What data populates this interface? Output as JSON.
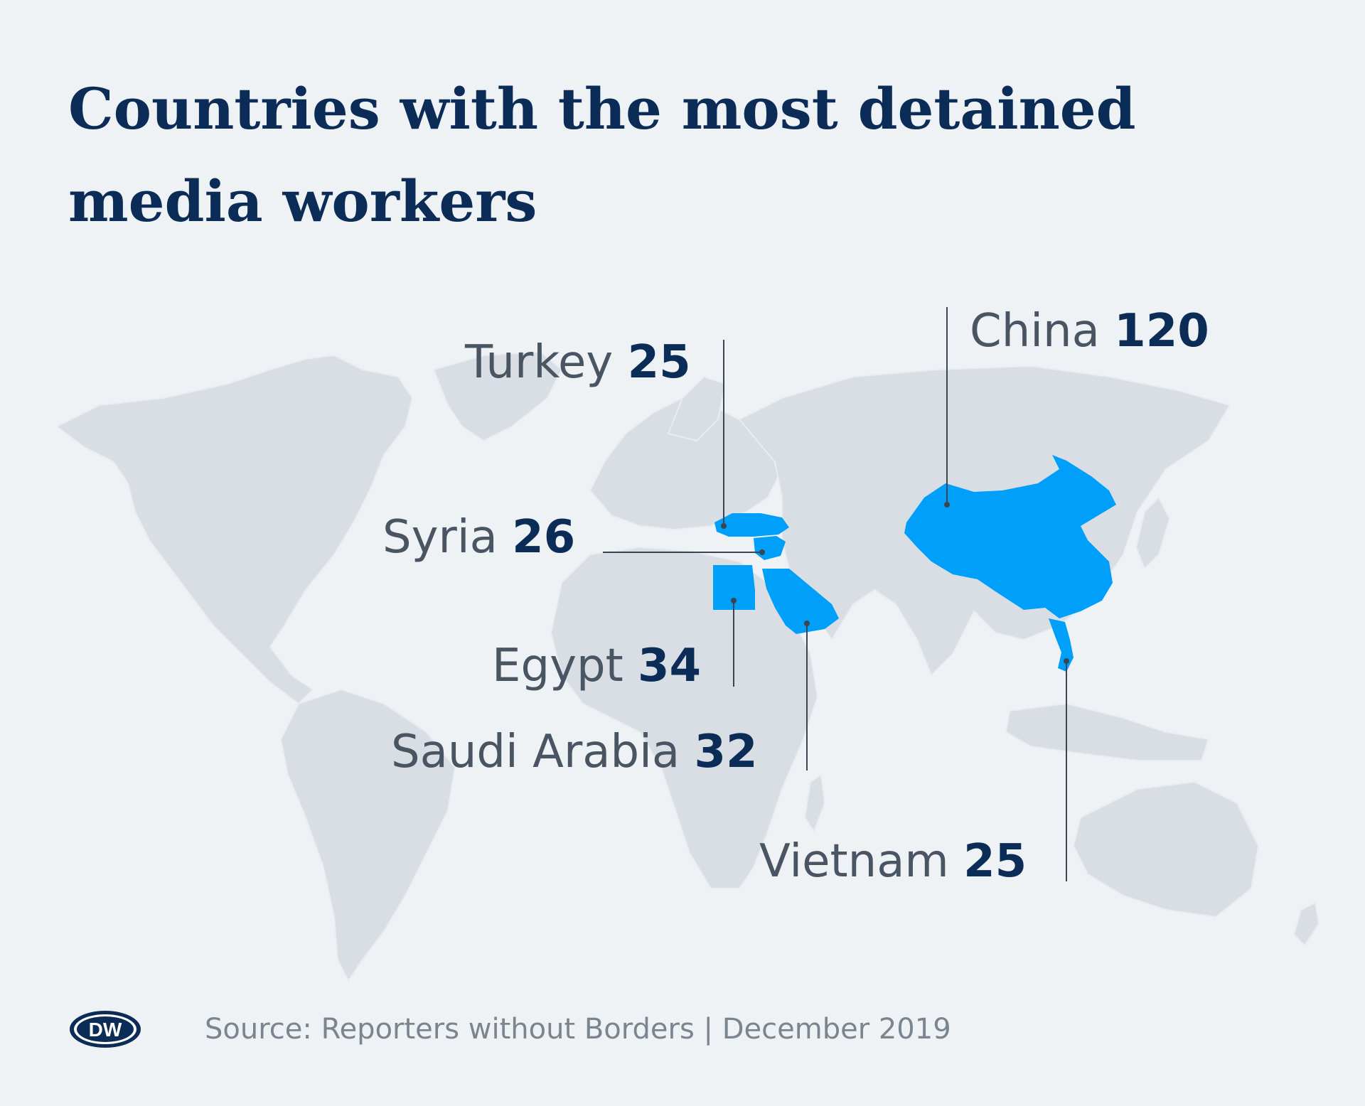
{
  "title": "Countries with the most detained media workers",
  "source": "Source: Reporters without Borders | December 2019",
  "logo_text": "DW",
  "colors": {
    "background": "#eff2f5",
    "land": "#d8dee4",
    "highlight": "#009ffa",
    "title": "#0c2c58",
    "label_name": "#4a5563",
    "label_value": "#0c2c58"
  },
  "countries": [
    {
      "name": "Turkey",
      "value": "25"
    },
    {
      "name": "China",
      "value": "120"
    },
    {
      "name": "Syria",
      "value": "26"
    },
    {
      "name": "Egypt",
      "value": "34"
    },
    {
      "name": "Saudi Arabia",
      "value": "32"
    },
    {
      "name": "Vietnam",
      "value": "25"
    }
  ]
}
